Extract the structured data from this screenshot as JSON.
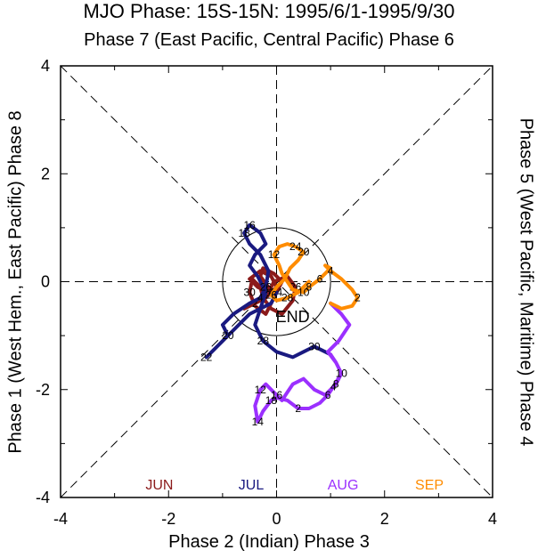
{
  "chart_data": {
    "type": "line",
    "title": "MJO Phase: 15S-15N: 1995/6/1-1995/9/30",
    "subtitle": "Phase 7 (East Pacific, Central Pacific) Phase 6",
    "xlabel": "Phase 2 (Indian) Phase 3",
    "ylabel_left": "Phase 1 (West Hem., East Pacific) Phase 8",
    "ylabel_right": "Phase 5 (West Pacific, Maritime) Phase 4",
    "xlim": [
      -4,
      4
    ],
    "ylim": [
      -4,
      4
    ],
    "xticks": [
      "-4",
      "-2",
      "0",
      "2",
      "4"
    ],
    "yticks": [
      "4",
      "2",
      "0",
      "-2",
      "-4"
    ],
    "end_label": "END",
    "unit_circle": true,
    "legend": [
      {
        "name": "JUN",
        "color": "#8b1a1a"
      },
      {
        "name": "JUL",
        "color": "#1a1a80"
      },
      {
        "name": "AUG",
        "color": "#9b30ff"
      },
      {
        "name": "SEP",
        "color": "#ff8c00"
      }
    ],
    "series": [
      {
        "name": "JUN",
        "color": "#8b1a1a",
        "x": [
          -0.6,
          -0.4,
          -0.2,
          0.0,
          -0.1,
          -0.3,
          -0.5,
          -0.35,
          -0.15,
          -0.05,
          0.2,
          0.35,
          0.3,
          0.1,
          -0.1,
          -0.25,
          -0.3,
          -0.45,
          -0.5,
          -0.4,
          -0.2,
          -0.1,
          0.0,
          0.1,
          -0.05,
          -0.25,
          -0.3,
          -0.15,
          -0.05,
          0.0
        ],
        "y": [
          -0.5,
          -0.4,
          -0.3,
          -0.1,
          0.1,
          0.2,
          0.05,
          -0.1,
          -0.2,
          0.0,
          0.1,
          -0.1,
          -0.35,
          -0.6,
          -0.5,
          -0.3,
          -0.1,
          0.05,
          -0.2,
          -0.45,
          -0.6,
          -0.4,
          -0.2,
          0.0,
          0.15,
          0.25,
          0.1,
          -0.1,
          -0.3,
          -0.2
        ],
        "labels": [
          {
            "text": "2",
            "i": 1
          },
          {
            "text": "24",
            "i": 8
          },
          {
            "text": "26",
            "i": 11
          },
          {
            "text": "30",
            "i": 18
          },
          {
            "text": "14",
            "i": 22
          }
        ]
      },
      {
        "name": "JUL",
        "color": "#1a1a80",
        "x": [
          0.0,
          -0.1,
          -0.3,
          -0.5,
          -0.6,
          -0.8,
          -1.0,
          -1.2,
          -1.3,
          -1.1,
          -0.9,
          -1.0,
          -0.8,
          -0.5,
          -0.3,
          -0.2,
          -0.15,
          -0.3,
          -0.5,
          -0.6,
          -0.5,
          -0.3,
          -0.2,
          -0.4,
          -0.5,
          -0.35,
          -0.2,
          -0.3,
          -0.4,
          -0.25,
          0.0,
          0.3,
          0.5,
          0.7,
          1.0
        ],
        "y": [
          -0.2,
          -0.4,
          -0.5,
          -0.6,
          -0.7,
          -0.9,
          -1.1,
          -1.3,
          -1.4,
          -1.2,
          -1.0,
          -0.8,
          -0.6,
          -0.4,
          -0.3,
          -0.1,
          0.2,
          0.5,
          0.7,
          0.9,
          1.05,
          0.9,
          0.7,
          0.5,
          0.3,
          0.1,
          -0.2,
          -0.5,
          -0.8,
          -1.1,
          -1.3,
          -1.4,
          -1.3,
          -1.2,
          -1.35
        ],
        "labels": [
          {
            "text": "20",
            "i": 10
          },
          {
            "text": "22",
            "i": 8
          },
          {
            "text": "18",
            "i": 19
          },
          {
            "text": "16",
            "i": 20
          },
          {
            "text": "28",
            "i": 29
          },
          {
            "text": "30",
            "i": 33
          },
          {
            "text": "4",
            "i": 14
          },
          {
            "text": "26",
            "i": 15
          }
        ]
      },
      {
        "name": "AUG",
        "color": "#9b30ff",
        "x": [
          1.0,
          1.1,
          1.2,
          1.1,
          0.9,
          0.7,
          0.5,
          0.3,
          0.2,
          0.1,
          0.0,
          -0.1,
          -0.2,
          -0.3,
          -0.4,
          -0.35,
          -0.25,
          -0.1,
          0.0,
          0.2,
          0.4,
          0.6,
          0.8,
          0.95,
          1.05,
          1.2,
          1.1,
          0.95,
          1.15,
          1.35,
          1.2,
          1.0
        ],
        "y": [
          -1.35,
          -1.5,
          -1.7,
          -1.9,
          -2.1,
          -2.0,
          -1.8,
          -1.9,
          -2.05,
          -2.2,
          -2.1,
          -2.0,
          -1.9,
          -2.0,
          -2.3,
          -2.6,
          -2.4,
          -2.2,
          -2.15,
          -2.2,
          -2.35,
          -2.35,
          -2.25,
          -2.1,
          -1.95,
          -1.7,
          -1.5,
          -1.3,
          -1.1,
          -0.8,
          -0.6,
          -0.4
        ],
        "labels": [
          {
            "text": "12",
            "i": 13
          },
          {
            "text": "14",
            "i": 15
          },
          {
            "text": "16",
            "i": 10
          },
          {
            "text": "18",
            "i": 17
          },
          {
            "text": "2",
            "i": 20
          },
          {
            "text": "4",
            "i": 24
          },
          {
            "text": "6",
            "i": 23
          },
          {
            "text": "10",
            "i": 2
          },
          {
            "text": "8",
            "i": 3
          }
        ]
      },
      {
        "name": "SEP",
        "color": "#ff8c00",
        "x": [
          1.0,
          1.2,
          1.4,
          1.5,
          1.4,
          1.2,
          1.0,
          0.9,
          1.0,
          0.8,
          0.6,
          0.5,
          0.3,
          0.2,
          0.1,
          0.05,
          -0.05,
          0.05,
          0.2,
          0.35,
          0.5,
          0.4,
          0.25,
          0.15,
          0.0,
          -0.1,
          0.0,
          0.2,
          0.4,
          0.5,
          0.6
        ],
        "y": [
          -0.4,
          -0.5,
          -0.45,
          -0.3,
          -0.15,
          0.05,
          0.2,
          0.3,
          0.25,
          0.05,
          -0.1,
          -0.2,
          -0.15,
          0.0,
          0.15,
          0.3,
          0.5,
          0.65,
          0.7,
          0.65,
          0.55,
          0.4,
          0.25,
          0.05,
          -0.1,
          -0.25,
          -0.35,
          -0.3,
          -0.2,
          -0.1,
          0.0
        ],
        "labels": [
          {
            "text": "2",
            "i": 3
          },
          {
            "text": "4",
            "i": 6
          },
          {
            "text": "6",
            "i": 9
          },
          {
            "text": "8",
            "i": 10
          },
          {
            "text": "10",
            "i": 11
          },
          {
            "text": "12",
            "i": 16
          },
          {
            "text": "24",
            "i": 19
          },
          {
            "text": "20",
            "i": 20
          },
          {
            "text": "28",
            "i": 27
          },
          {
            "text": "26",
            "i": 25
          }
        ]
      }
    ]
  }
}
